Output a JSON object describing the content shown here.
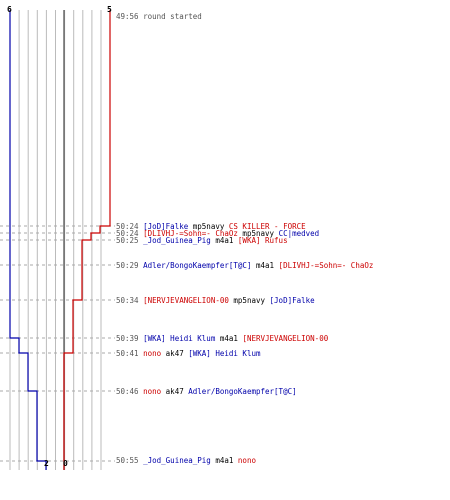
{
  "colors": {
    "team_blue": "#0000aa",
    "team_red": "#cc0000",
    "neutral": "#000000",
    "time": "#555555",
    "grid": "#bbbbbb",
    "center": "#555555"
  },
  "teams": {
    "blue": {
      "start_count": "6",
      "end_count": "2"
    },
    "red": {
      "start_count": "5",
      "end_count": "0"
    }
  },
  "log": [
    {
      "time": "49:56",
      "parts": [
        {
          "text": "round started",
          "team": "time"
        }
      ]
    },
    {
      "time": "50:24",
      "parts": [
        {
          "text": "[JoD]Falke",
          "team": "blue"
        },
        {
          "text": " mp5navy ",
          "team": "neutral"
        },
        {
          "text": "CS KILLER - FORCE",
          "team": "red"
        }
      ]
    },
    {
      "time": "50:24",
      "parts": [
        {
          "text": "[DLIVHJ-=Sohn=- ChaOz",
          "team": "red"
        },
        {
          "text": " mp5navy ",
          "team": "neutral"
        },
        {
          "text": "CC|medved",
          "team": "blue"
        }
      ]
    },
    {
      "time": "50:25",
      "parts": [
        {
          "text": "_Jod_Guinea_Pig",
          "team": "blue"
        },
        {
          "text": " m4a1 ",
          "team": "neutral"
        },
        {
          "text": "[WKA] Rufus",
          "team": "red"
        }
      ]
    },
    {
      "time": "50:29",
      "parts": [
        {
          "text": "Adler/BongoKaempfer[T@C]",
          "team": "blue"
        },
        {
          "text": " m4a1 ",
          "team": "neutral"
        },
        {
          "text": "[DLIVHJ-=Sohn=- ChaOz",
          "team": "red"
        }
      ]
    },
    {
      "time": "50:34",
      "parts": [
        {
          "text": "[NERVJEVANGELION-00",
          "team": "red"
        },
        {
          "text": " mp5navy ",
          "team": "neutral"
        },
        {
          "text": "[JoD]Falke",
          "team": "blue"
        }
      ]
    },
    {
      "time": "50:39",
      "parts": [
        {
          "text": "[WKA] Heidi Klum",
          "team": "blue"
        },
        {
          "text": " m4a1 ",
          "team": "neutral"
        },
        {
          "text": "[NERVJEVANGELION-00",
          "team": "red"
        }
      ]
    },
    {
      "time": "50:41",
      "parts": [
        {
          "text": "nono",
          "team": "red"
        },
        {
          "text": " ak47 ",
          "team": "neutral"
        },
        {
          "text": "[WKA] Heidi Klum",
          "team": "blue"
        }
      ]
    },
    {
      "time": "50:46",
      "parts": [
        {
          "text": "nono",
          "team": "red"
        },
        {
          "text": " ak47 ",
          "team": "neutral"
        },
        {
          "text": "Adler/BongoKaempfer[T@C]",
          "team": "blue"
        }
      ]
    },
    {
      "time": "50:55",
      "parts": [
        {
          "text": "_Jod_Guinea_Pig",
          "team": "blue"
        },
        {
          "text": " m4a1 ",
          "team": "neutral"
        },
        {
          "text": "nono",
          "team": "red"
        }
      ]
    }
  ]
}
